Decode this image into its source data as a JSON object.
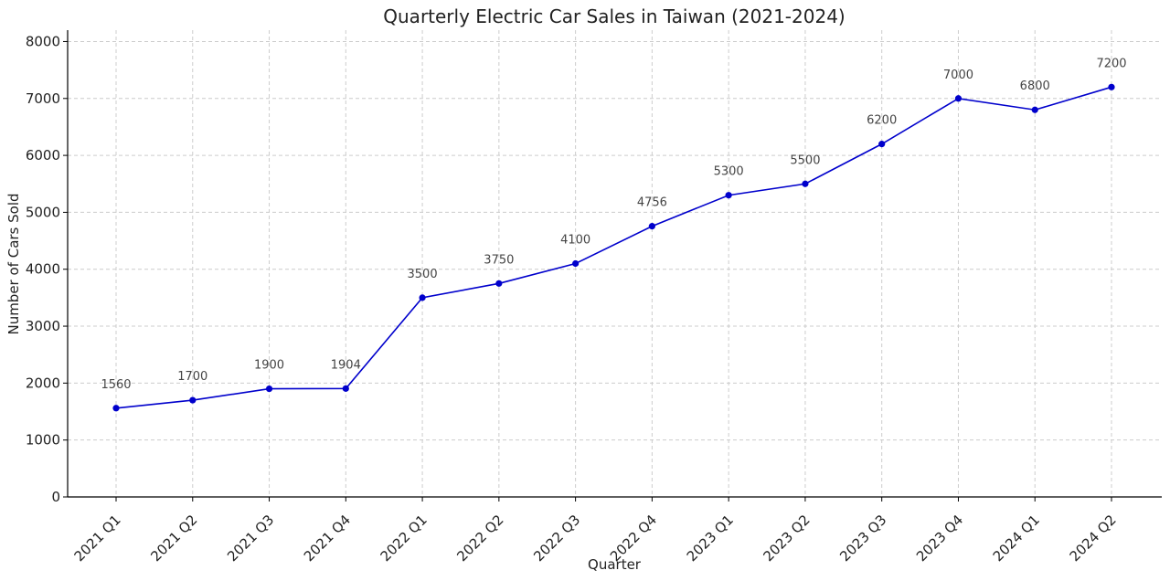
{
  "chart_data": {
    "type": "line",
    "title": "Quarterly Electric Car Sales in Taiwan (2021-2024)",
    "xlabel": "Quarter",
    "ylabel": "Number of Cars Sold",
    "categories": [
      "2021 Q1",
      "2021 Q2",
      "2021 Q3",
      "2021 Q4",
      "2022 Q1",
      "2022 Q2",
      "2022 Q3",
      "2022 Q4",
      "2023 Q1",
      "2023 Q2",
      "2023 Q3",
      "2023 Q4",
      "2024 Q1",
      "2024 Q2"
    ],
    "series": [
      {
        "values": [
          1560,
          1700,
          1900,
          1904,
          3500,
          3750,
          4100,
          4756,
          5300,
          5500,
          6200,
          7000,
          6800,
          7200
        ],
        "color": "#0000cc"
      }
    ],
    "ylim": [
      0,
      8200
    ],
    "yticks": [
      0,
      1000,
      2000,
      3000,
      4000,
      5000,
      6000,
      7000,
      8000
    ],
    "grid": true,
    "data_labels": true
  }
}
